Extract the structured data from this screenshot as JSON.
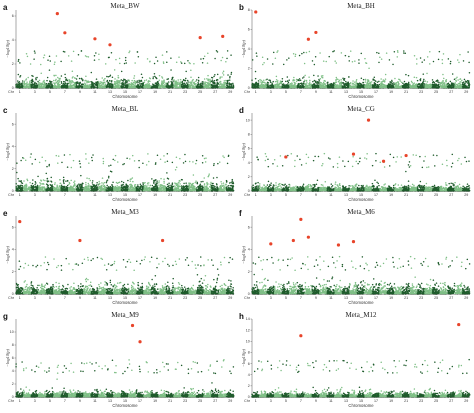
{
  "figure": {
    "colors": {
      "dark": "#1f5c2c",
      "light": "#7fbf86",
      "highlight": "#e8442a"
    }
  },
  "chart_data": [
    {
      "type": "scatter",
      "label": "a",
      "title": "Meta_BW",
      "xlabel": "Chromosome",
      "ylabel": "−log10(p)",
      "ylim": [
        0,
        6.5
      ],
      "yticks": [
        0,
        2,
        4,
        6
      ],
      "xticks": [
        "Chr",
        "1",
        "3",
        "5",
        "7",
        "9",
        "11",
        "13",
        "15",
        "17",
        "19",
        "21",
        "23",
        "25",
        "27",
        "29"
      ],
      "chromosomes": 29,
      "significant": [
        {
          "chr": 6,
          "y": 6.2
        },
        {
          "chr": 7,
          "y": 4.6
        },
        {
          "chr": 11,
          "y": 4.1
        },
        {
          "chr": 13,
          "y": 3.6
        },
        {
          "chr": 25,
          "y": 4.2
        },
        {
          "chr": 28,
          "y": 4.3
        }
      ]
    },
    {
      "type": "scatter",
      "label": "b",
      "title": "Meta_BH",
      "xlabel": "Chromosome",
      "ylabel": "−log10(p)",
      "ylim": [
        0,
        8
      ],
      "yticks": [
        0,
        2,
        4,
        6,
        8
      ],
      "xticks": [
        "Chr",
        "1",
        "3",
        "5",
        "7",
        "9",
        "11",
        "13",
        "15",
        "17",
        "19",
        "21",
        "23",
        "25",
        "27",
        "29"
      ],
      "chromosomes": 29,
      "significant": [
        {
          "chr": 1,
          "y": 7.8
        },
        {
          "chr": 8,
          "y": 5.0
        },
        {
          "chr": 9,
          "y": 5.7
        }
      ]
    },
    {
      "type": "scatter",
      "label": "c",
      "title": "Meta_BL",
      "xlabel": "Chromosome",
      "ylabel": "−log10(p)",
      "ylim": [
        0,
        7
      ],
      "yticks": [
        0,
        2,
        4,
        6
      ],
      "xticks": [
        "Chr",
        "1",
        "3",
        "5",
        "7",
        "9",
        "11",
        "13",
        "15",
        "17",
        "19",
        "21",
        "23",
        "25",
        "27",
        "29"
      ],
      "chromosomes": 29,
      "significant": []
    },
    {
      "type": "scatter",
      "label": "d",
      "title": "Meta_CG",
      "xlabel": "Chromosome",
      "ylabel": "−log10(p)",
      "ylim": [
        0,
        11
      ],
      "yticks": [
        0,
        2,
        4,
        6,
        8,
        10
      ],
      "xticks": [
        "Chr",
        "1",
        "3",
        "5",
        "7",
        "9",
        "11",
        "13",
        "15",
        "17",
        "19",
        "21",
        "23",
        "25",
        "27",
        "29"
      ],
      "chromosomes": 29,
      "significant": [
        {
          "chr": 5,
          "y": 4.8
        },
        {
          "chr": 14,
          "y": 5.2
        },
        {
          "chr": 16,
          "y": 10.0
        },
        {
          "chr": 18,
          "y": 4.2
        },
        {
          "chr": 21,
          "y": 5.0
        }
      ]
    },
    {
      "type": "scatter",
      "label": "e",
      "title": "Meta_M3",
      "xlabel": "Chromosome",
      "ylabel": "−log10(p)",
      "ylim": [
        0,
        7
      ],
      "yticks": [
        0,
        2,
        4,
        6
      ],
      "xticks": [
        "Chr",
        "1",
        "3",
        "5",
        "7",
        "9",
        "11",
        "13",
        "15",
        "17",
        "19",
        "21",
        "23",
        "25",
        "27",
        "29"
      ],
      "chromosomes": 29,
      "significant": [
        {
          "chr": 1,
          "y": 6.5
        },
        {
          "chr": 9,
          "y": 4.8
        },
        {
          "chr": 20,
          "y": 4.8
        }
      ]
    },
    {
      "type": "scatter",
      "label": "f",
      "title": "Meta_M6",
      "xlabel": "Chromosome",
      "ylabel": "−log10(p)",
      "ylim": [
        0,
        7
      ],
      "yticks": [
        0,
        2,
        4,
        6
      ],
      "xticks": [
        "Chr",
        "1",
        "3",
        "5",
        "7",
        "9",
        "11",
        "13",
        "15",
        "17",
        "19",
        "21",
        "23",
        "25",
        "27",
        "29"
      ],
      "chromosomes": 29,
      "significant": [
        {
          "chr": 3,
          "y": 4.5
        },
        {
          "chr": 6,
          "y": 4.8
        },
        {
          "chr": 7,
          "y": 6.7
        },
        {
          "chr": 8,
          "y": 5.1
        },
        {
          "chr": 12,
          "y": 4.4
        },
        {
          "chr": 14,
          "y": 4.7
        }
      ]
    },
    {
      "type": "scatter",
      "label": "g",
      "title": "Meta_M9",
      "xlabel": "Chromosome",
      "ylabel": "−log10(p)",
      "ylim": [
        0,
        12
      ],
      "yticks": [
        0,
        2,
        4,
        6,
        8,
        10
      ],
      "xticks": [
        "Chr",
        "1",
        "3",
        "5",
        "7",
        "9",
        "11",
        "13",
        "15",
        "17",
        "19",
        "21",
        "23",
        "25",
        "27",
        "29"
      ],
      "chromosomes": 29,
      "significant": [
        {
          "chr": 16,
          "y": 11.0
        },
        {
          "chr": 17,
          "y": 8.5
        }
      ]
    },
    {
      "type": "scatter",
      "label": "h",
      "title": "Meta_M12",
      "xlabel": "Chromosome",
      "ylabel": "−log10(p)",
      "ylim": [
        0,
        14
      ],
      "yticks": [
        0,
        2,
        4,
        6,
        8,
        10,
        12,
        14
      ],
      "xticks": [
        "Chr",
        "1",
        "3",
        "5",
        "7",
        "9",
        "11",
        "13",
        "15",
        "17",
        "19",
        "21",
        "23",
        "25",
        "27",
        "29"
      ],
      "chromosomes": 29,
      "significant": [
        {
          "chr": 7,
          "y": 11.0
        },
        {
          "chr": 28,
          "y": 13.0
        }
      ]
    }
  ]
}
